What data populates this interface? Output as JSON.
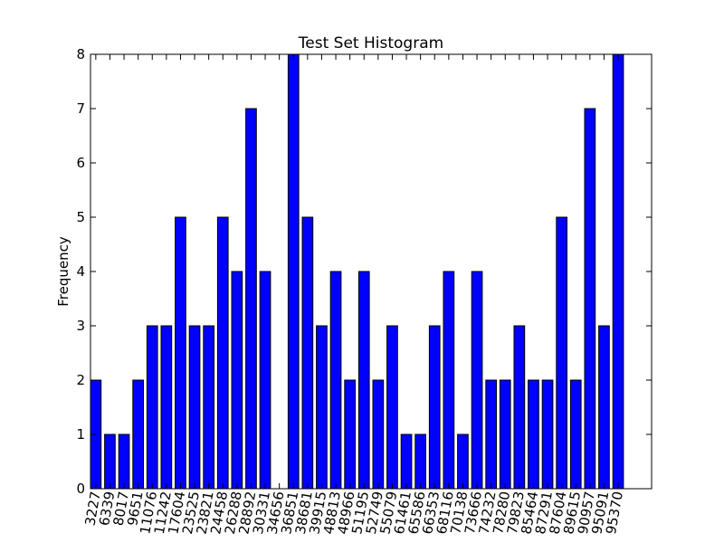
{
  "chart_data": {
    "type": "bar",
    "title": "Test Set Histogram",
    "xlabel": "",
    "ylabel": "Frequency",
    "ylim": [
      0,
      8
    ],
    "yticks": [
      0,
      1,
      2,
      3,
      4,
      5,
      6,
      7,
      8
    ],
    "categories": [
      "3227",
      "6339",
      "8017",
      "9651",
      "11076",
      "11242",
      "17604",
      "23525",
      "23821",
      "24458",
      "26288",
      "28892",
      "30331",
      "34656",
      "36851",
      "38681",
      "39915",
      "48813",
      "48966",
      "51195",
      "52749",
      "55079",
      "61461",
      "65586",
      "66353",
      "68116",
      "70138",
      "73666",
      "74232",
      "78280",
      "79823",
      "85464",
      "87291",
      "87604",
      "89615",
      "90957",
      "95091",
      "95370"
    ],
    "values": [
      2,
      1,
      1,
      2,
      3,
      3,
      5,
      3,
      3,
      5,
      4,
      7,
      4,
      0,
      8,
      5,
      3,
      4,
      2,
      4,
      2,
      3,
      1,
      1,
      3,
      4,
      1,
      4,
      2,
      2,
      3,
      2,
      2,
      5,
      2,
      7,
      3,
      8
    ],
    "bar_color": "#0000ff",
    "grid": false,
    "legend": "none"
  }
}
